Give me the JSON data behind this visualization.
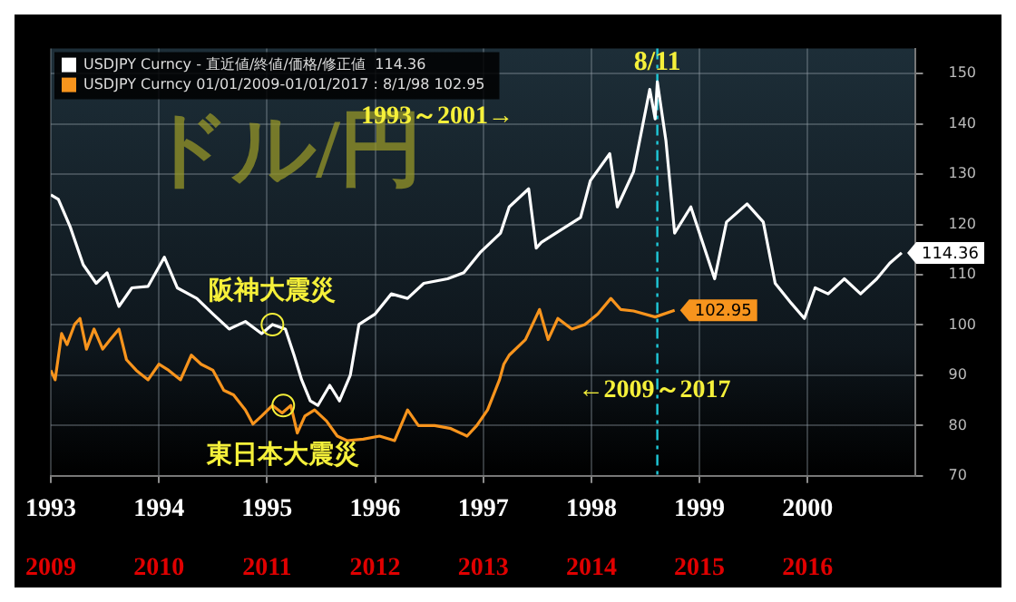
{
  "chart_data": {
    "type": "line",
    "title": "ドル/円",
    "xlim": [
      1993,
      2001
    ],
    "xticks": [
      1993,
      1994,
      1995,
      1996,
      1997,
      1998,
      1999,
      2000
    ],
    "x2lim": [
      2009,
      2017
    ],
    "x2ticks": [
      2009,
      2010,
      2011,
      2012,
      2013,
      2014,
      2015,
      2016
    ],
    "ylim": [
      70,
      155
    ],
    "yticks": [
      70,
      80,
      90,
      100,
      110,
      120,
      130,
      140,
      150
    ],
    "grid": true,
    "legend": "top left",
    "marker": "none",
    "line_style": "solid",
    "series": [
      {
        "name": "USDJPY Curncy - 直近値/終値/価格/修正値  114.36",
        "color": "#ffffff",
        "x": [
          1993.0,
          1993.07,
          1993.18,
          1993.3,
          1993.42,
          1993.52,
          1993.63,
          1993.75,
          1993.9,
          1994.05,
          1994.17,
          1994.35,
          1994.5,
          1994.65,
          1994.8,
          1994.95,
          1995.05,
          1995.17,
          1995.25,
          1995.32,
          1995.4,
          1995.47,
          1995.58,
          1995.67,
          1995.77,
          1995.85,
          1996.0,
          1996.15,
          1996.3,
          1996.45,
          1996.67,
          1996.82,
          1996.97,
          1997.16,
          1997.24,
          1997.42,
          1997.49,
          1997.54,
          1997.9,
          1997.99,
          1998.17,
          1998.24,
          1998.39,
          1998.54,
          1998.59,
          1998.61,
          1998.69,
          1998.77,
          1998.92,
          1999.14,
          1999.25,
          1999.44,
          1999.59,
          1999.7,
          1999.85,
          1999.97,
          2000.07,
          2000.19,
          2000.34,
          2000.49,
          2000.64,
          2000.76,
          2000.87
        ],
        "values": [
          125.9,
          125,
          119.5,
          112,
          108.3,
          110.4,
          103.7,
          107.4,
          107.7,
          113.5,
          107.4,
          105.3,
          102.2,
          99.2,
          100.7,
          98.3,
          100.1,
          99.2,
          94,
          89.1,
          84.9,
          84,
          88,
          84.9,
          90,
          100.1,
          102.2,
          106.2,
          105.3,
          108.3,
          109.2,
          110.4,
          114.4,
          118.3,
          123.5,
          127.1,
          115.3,
          116.5,
          121.4,
          128.7,
          134.1,
          123.5,
          130.5,
          146.9,
          141,
          148.4,
          136.6,
          118.3,
          123.5,
          109.2,
          120.5,
          124.1,
          120.5,
          108.3,
          104.3,
          101.3,
          107.4,
          106.2,
          109.2,
          106.2,
          109.2,
          112.3,
          114.36
        ],
        "value_labels": [
          null,
          null,
          null,
          null,
          null,
          null,
          null,
          null,
          null,
          null,
          null,
          null,
          null,
          null,
          null,
          null,
          null,
          null,
          null,
          null,
          null,
          null,
          null,
          null,
          null,
          null,
          null,
          null,
          null,
          null,
          null,
          null,
          null,
          null,
          null,
          null,
          null,
          null,
          null,
          null,
          null,
          null,
          null,
          null,
          null,
          null,
          null,
          null,
          null,
          null,
          null,
          null,
          null,
          null,
          null,
          null,
          null,
          null,
          null,
          null,
          null,
          null,
          "114.36"
        ]
      },
      {
        "name": "USDJPY Curncy 01/01/2009-01/01/2017 : 8/1/98 102.95",
        "color": "#f7941d",
        "axis": "x2",
        "x": [
          2009.0,
          2009.04,
          2009.1,
          2009.15,
          2009.22,
          2009.27,
          2009.33,
          2009.4,
          2009.48,
          2009.55,
          2009.63,
          2009.7,
          2009.79,
          2009.9,
          2010.0,
          2010.09,
          2010.2,
          2010.3,
          2010.39,
          2010.5,
          2010.6,
          2010.69,
          2010.8,
          2010.87,
          2010.95,
          2011.05,
          2011.14,
          2011.22,
          2011.28,
          2011.35,
          2011.44,
          2011.55,
          2011.65,
          2011.74,
          2011.89,
          2012.04,
          2012.18,
          2012.3,
          2012.4,
          2012.55,
          2012.7,
          2012.85,
          2012.94,
          2013.04,
          2013.15,
          2013.19,
          2013.24,
          2013.39,
          2013.52,
          2013.6,
          2013.69,
          2013.82,
          2013.94,
          2014.06,
          2014.18,
          2014.27,
          2014.39,
          2014.59,
          2014.77
        ],
        "values": [
          91,
          89.1,
          98.3,
          96.1,
          100.1,
          101.3,
          95.2,
          99.2,
          95.2,
          97.1,
          99.2,
          93.1,
          91,
          89.1,
          92.2,
          91,
          89.1,
          94,
          92.2,
          91,
          87,
          86.1,
          83.1,
          80.3,
          81.9,
          84,
          82.5,
          84,
          78.5,
          81.9,
          83.1,
          80.9,
          77.9,
          77,
          77.3,
          77.9,
          77,
          83.1,
          80,
          80,
          79.4,
          77.9,
          80,
          83.1,
          89.1,
          92.2,
          94,
          97.1,
          103.1,
          97.1,
          101.3,
          99.2,
          100.1,
          102.2,
          105.3,
          103.1,
          102.8,
          101.6,
          102.95
        ],
        "value_labels": [
          null,
          null,
          null,
          null,
          null,
          null,
          null,
          null,
          null,
          null,
          null,
          null,
          null,
          null,
          null,
          null,
          null,
          null,
          null,
          null,
          null,
          null,
          null,
          null,
          null,
          null,
          null,
          null,
          null,
          null,
          null,
          null,
          null,
          null,
          null,
          null,
          null,
          null,
          null,
          null,
          null,
          null,
          null,
          null,
          null,
          null,
          null,
          null,
          null,
          null,
          null,
          null,
          null,
          null,
          null,
          null,
          null,
          null,
          "102.95"
        ]
      }
    ],
    "ref_lines": [
      {
        "axis": "x",
        "value": 1998.61,
        "color": "#1fc8d8",
        "line_style": "dashed"
      }
    ],
    "annotations": [
      "1993～2001→",
      {
        "text": "阪神大震災",
        "x": 1995.05,
        "y": 100.1
      },
      {
        "text": "東日本大震災",
        "x": 1995.15,
        "y": 84
      },
      "←2009～2017",
      {
        "text": "8/11",
        "x": 1998.61,
        "y": 148.4
      }
    ]
  }
}
